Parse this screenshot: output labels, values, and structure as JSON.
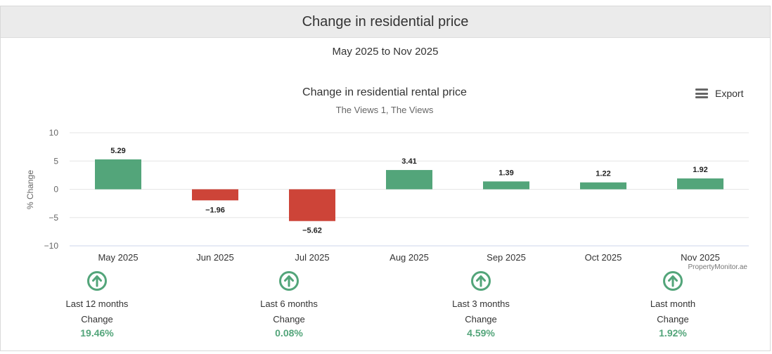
{
  "header": {
    "title": "Change in residential price"
  },
  "date_range": "May 2025 to Nov 2025",
  "export_label": "Export",
  "watermark": "PropertyMonitor.ae",
  "colors": {
    "positive": "#53a57a",
    "negative": "#cd4438",
    "stat_value": "#53a57a",
    "icon": "#53a57a"
  },
  "chart_data": {
    "type": "bar",
    "title": "Change in residential rental price",
    "subtitle": "The Views 1, The Views",
    "xlabel": "",
    "ylabel": "% Change",
    "categories": [
      "May 2025",
      "Jun 2025",
      "Jul 2025",
      "Aug 2025",
      "Sep 2025",
      "Oct 2025",
      "Nov 2025"
    ],
    "values": [
      5.29,
      -1.96,
      -5.62,
      3.41,
      1.39,
      1.22,
      1.92
    ],
    "data_labels": [
      "5.29",
      "−1.96",
      "−5.62",
      "3.41",
      "1.39",
      "1.22",
      "1.92"
    ],
    "ylim": [
      -10,
      10
    ],
    "yticks": [
      10,
      5,
      0,
      -5,
      -10
    ],
    "ytick_labels": [
      "10",
      "5",
      "0",
      "−5",
      "−10"
    ],
    "grid": true,
    "legend": "none"
  },
  "stats": [
    {
      "period": "Last 12 months",
      "label": "Change",
      "value": "19.46%",
      "icon": "arrow-up-circle-icon"
    },
    {
      "period": "Last 6 months",
      "label": "Change",
      "value": "0.08%",
      "icon": "arrow-up-circle-icon"
    },
    {
      "period": "Last 3 months",
      "label": "Change",
      "value": "4.59%",
      "icon": "arrow-up-circle-icon"
    },
    {
      "period": "Last month",
      "label": "Change",
      "value": "1.92%",
      "icon": "arrow-up-circle-icon"
    }
  ]
}
